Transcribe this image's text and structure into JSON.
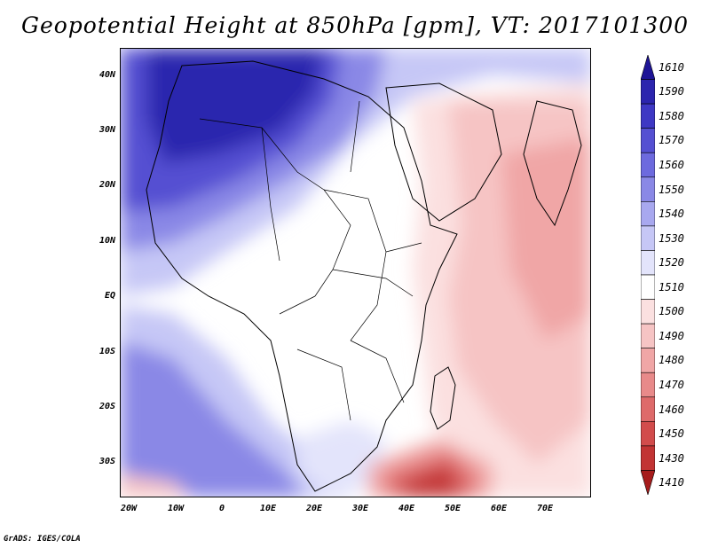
{
  "title": "Geopotential Height at 850hPa [gpm], VT: 2017101300",
  "credit": "GrADS: IGES/COLA",
  "y_ticks": [
    "40N",
    "30N",
    "20N",
    "10N",
    "EQ",
    "10S",
    "20S",
    "30S"
  ],
  "x_ticks": [
    "20W",
    "10W",
    "0",
    "10E",
    "20E",
    "30E",
    "40E",
    "50E",
    "60E",
    "70E"
  ],
  "colorbar": {
    "labels": [
      "1610",
      "1590",
      "1580",
      "1570",
      "1560",
      "1550",
      "1540",
      "1530",
      "1520",
      "1510",
      "1500",
      "1490",
      "1480",
      "1470",
      "1460",
      "1450",
      "1430",
      "1410"
    ],
    "colors": [
      "#1e1496",
      "#2c25ae",
      "#3e38c4",
      "#5550d2",
      "#6d6ade",
      "#8a88e6",
      "#a8a8ef",
      "#c6c7f6",
      "#e3e4fb",
      "#ffffff",
      "#fbe0e0",
      "#f6c4c4",
      "#f0a6a6",
      "#e88a8a",
      "#de6a6a",
      "#d24c4c",
      "#c23434",
      "#a61c1c"
    ]
  },
  "map_colors": {
    "h1590": "#2c25ae",
    "h1570": "#5550d2",
    "h1550": "#8a88e6",
    "h1530": "#c6c7f6",
    "h1520": "#e3e4fb",
    "h1510": "#ffffff",
    "h1500": "#fbe0e0",
    "h1490": "#f6c4c4",
    "h1480": "#f0a6a6",
    "h1460": "#de6a6a",
    "h1430": "#c23434",
    "h1410": "#a61c1c"
  }
}
